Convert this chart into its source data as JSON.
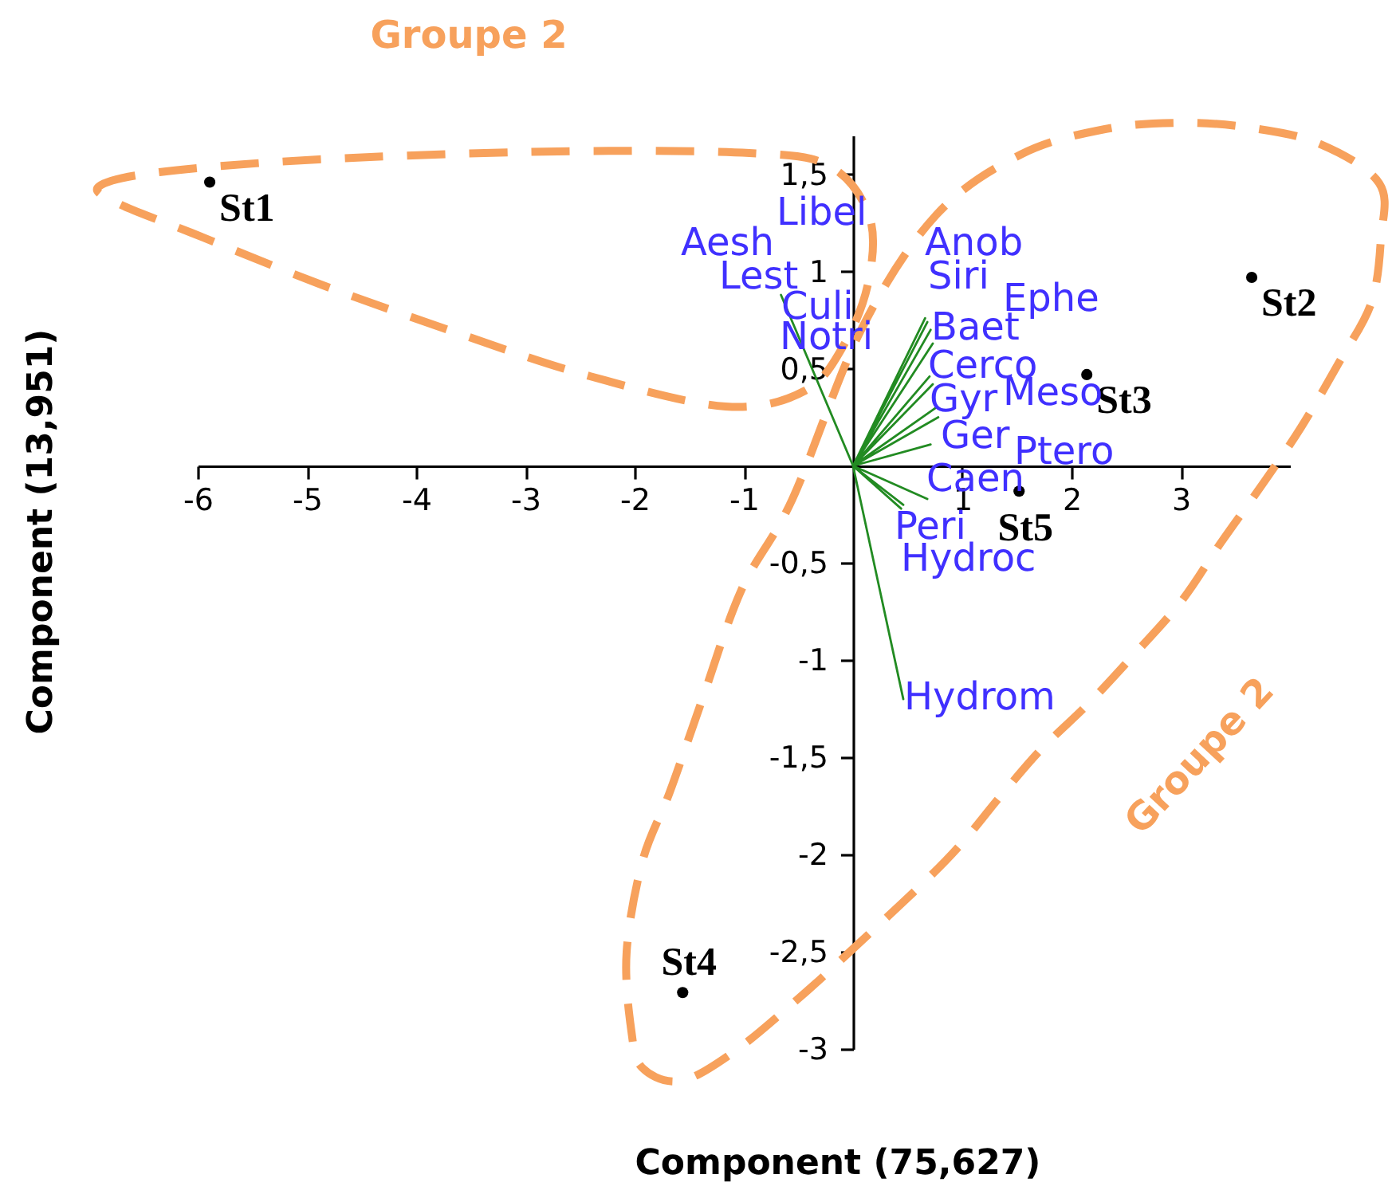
{
  "chart_data": {
    "type": "scatter",
    "xlabel": "Component (75,627)",
    "ylabel": "Component (13,951)",
    "xlim": [
      -6,
      4
    ],
    "ylim": [
      -3,
      1.7
    ],
    "xticks": [
      -6,
      -5,
      -4,
      -3,
      -2,
      -1,
      1,
      2,
      3
    ],
    "yticks": [
      -3,
      {
        "value": -2.5,
        "label": "-2,5"
      },
      -2,
      {
        "value": -1.5,
        "label": "-1,5"
      },
      -1,
      {
        "value": -0.5,
        "label": "-0,5"
      },
      {
        "value": 0.5,
        "label": "0,5"
      },
      1,
      {
        "value": 1.5,
        "label": "1,5"
      }
    ],
    "grid": false,
    "series": [
      {
        "name": "St1",
        "marker": "circle",
        "color": "#000000",
        "x": [
          -5.89
        ],
        "values": [
          1.46
        ]
      },
      {
        "name": "St2",
        "marker": "circle",
        "color": "#000000",
        "x": [
          3.65
        ],
        "values": [
          0.97
        ]
      },
      {
        "name": "St3",
        "marker": "circle",
        "color": "#000000",
        "x": [
          2.14
        ],
        "values": [
          0.47
        ]
      },
      {
        "name": "St4",
        "marker": "circle",
        "color": "#000000",
        "x": [
          -1.56
        ],
        "values": [
          -2.71
        ]
      },
      {
        "name": "St5",
        "marker": "circle",
        "color": "#000000",
        "x": [
          1.52
        ],
        "values": [
          -0.13
        ]
      },
      {
        "type": "line",
        "color": "#228b22",
        "x": [
          0,
          -0.66,
          0,
          0.66,
          0,
          0.68,
          0,
          0.71,
          0,
          0.73,
          0,
          0.7,
          0,
          0.73,
          0,
          0.76,
          0,
          0.78,
          0,
          0.71,
          0,
          0.68,
          0,
          0.46,
          0,
          0.44,
          0,
          0.46
        ],
        "values": [
          0,
          0.88,
          0,
          0.76,
          0,
          0.74,
          0,
          0.7,
          0,
          0.63,
          0,
          0.46,
          0,
          0.42,
          0,
          0.3,
          0,
          0.25,
          0,
          0.11,
          0,
          -0.17,
          0,
          -0.2,
          0,
          -0.22,
          0,
          -1.2
        ]
      }
    ],
    "annotations": [
      "Groupe 2",
      "Groupe 2",
      "Libel",
      "Aesh",
      "Lest",
      "Culi",
      "Notri",
      "Anob",
      "Siri",
      "Ephe",
      "Baet",
      "Cerco",
      "Gyr",
      "Meso",
      "Ger",
      "Ptero",
      "Caen",
      "Peri",
      "Hydroc",
      "Hydrom"
    ]
  }
}
